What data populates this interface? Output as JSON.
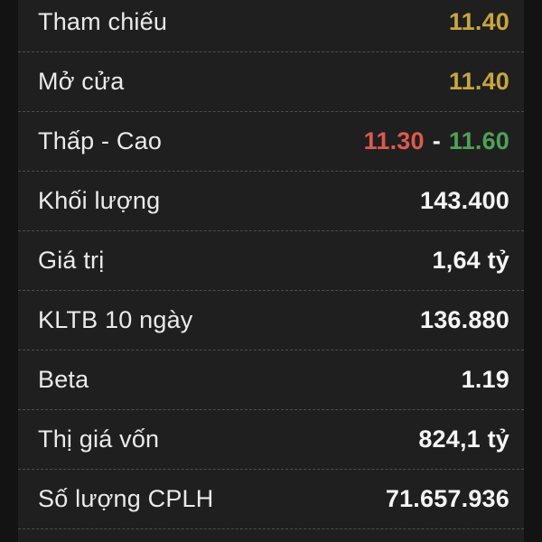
{
  "colors": {
    "outer_bg": "#131314",
    "panel_bg": "#1f1f20",
    "divider": "#4d4d4d",
    "label": "#ebebec",
    "value_default": "#f6f6f7",
    "value_reference": "#c7a63e",
    "value_low": "#dc5a4f",
    "value_high": "#4fa255"
  },
  "table": {
    "rows": [
      {
        "label": "Tham chiếu",
        "value": "11.40"
      },
      {
        "label": "Mở cửa",
        "value": "11.40"
      },
      {
        "label": "Thấp - Cao",
        "low": "11.30",
        "separator": "-",
        "high": "11.60"
      },
      {
        "label": "Khối lượng",
        "value": "143.400"
      },
      {
        "label": "Giá trị",
        "value": "1,64 tỷ"
      },
      {
        "label": "KLTB 10 ngày",
        "value": "136.880"
      },
      {
        "label": "Beta",
        "value": "1.19"
      },
      {
        "label": "Thị giá vốn",
        "value": "824,1 tỷ"
      },
      {
        "label": "Số lượng CPLH",
        "value": "71.657.936"
      }
    ]
  }
}
